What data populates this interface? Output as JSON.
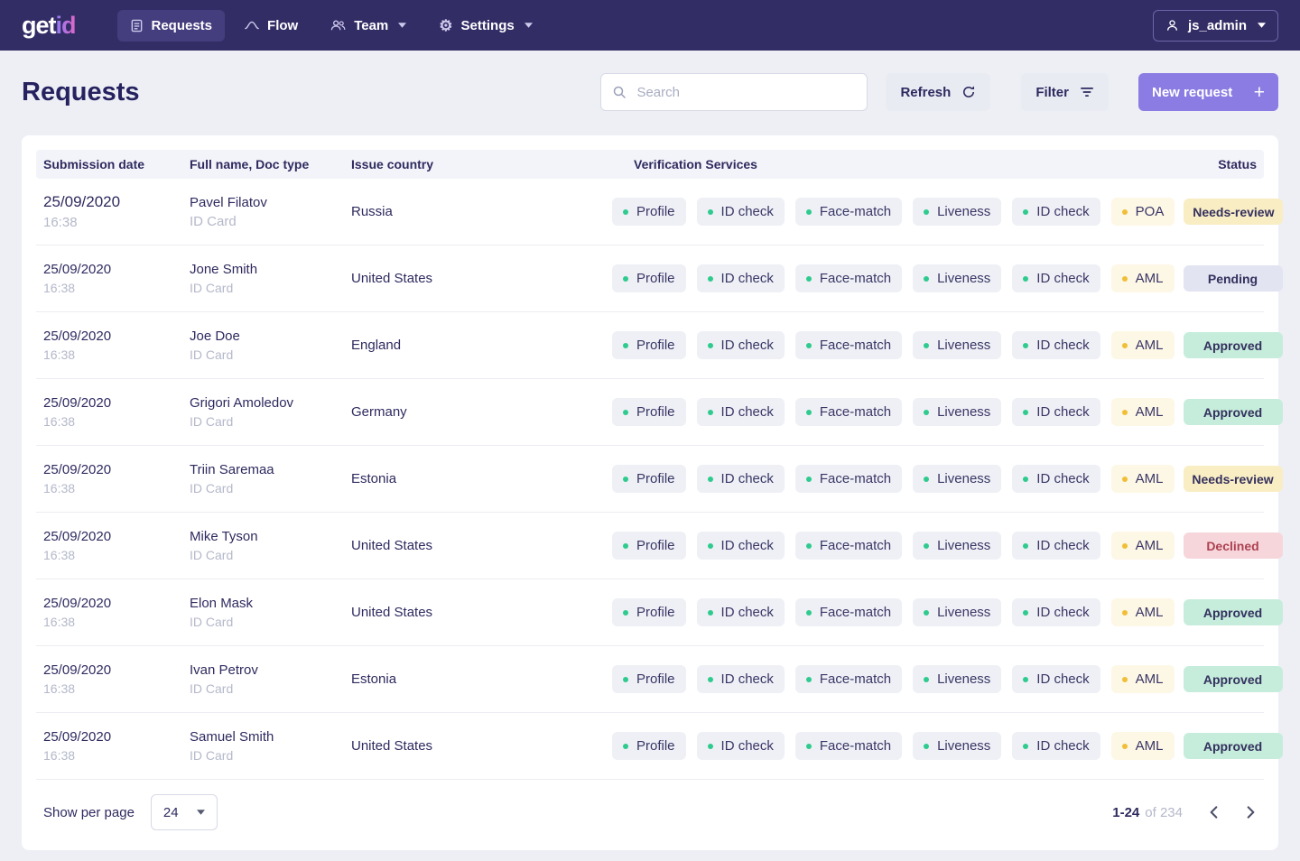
{
  "brand": {
    "get": "get",
    "id": "id"
  },
  "nav": {
    "items": [
      {
        "label": "Requests",
        "icon": "requests-icon",
        "active": true
      },
      {
        "label": "Flow",
        "icon": "flow-icon",
        "active": false
      },
      {
        "label": "Team",
        "icon": "team-icon",
        "active": false,
        "has_dropdown": true
      },
      {
        "label": "Settings",
        "icon": "settings-icon",
        "active": false,
        "has_dropdown": true
      }
    ],
    "user_label": "js_admin"
  },
  "page": {
    "title": "Requests"
  },
  "toolbar": {
    "search_placeholder": "Search",
    "refresh_label": "Refresh",
    "filter_label": "Filter",
    "new_request_label": "New request"
  },
  "table": {
    "columns": [
      "Submission date",
      "Full name, Doc type",
      "Issue country",
      "Verification Services",
      "Status"
    ],
    "rows": [
      {
        "date": "25/09/2020",
        "time": "16:38",
        "name": "Pavel Filatov",
        "doc_type": "ID Card",
        "country": "Russia",
        "services": [
          {
            "label": "Profile",
            "type": "green"
          },
          {
            "label": "ID check",
            "type": "green"
          },
          {
            "label": "Face-match",
            "type": "green"
          },
          {
            "label": "Liveness",
            "type": "green"
          },
          {
            "label": "ID check",
            "type": "green"
          },
          {
            "label": "POA",
            "type": "yellow"
          }
        ],
        "status": "Needs-review",
        "status_class": "needs-review",
        "emphasized": true
      },
      {
        "date": "25/09/2020",
        "time": "16:38",
        "name": "Jone Smith",
        "doc_type": "ID Card",
        "country": "United States",
        "services": [
          {
            "label": "Profile",
            "type": "green"
          },
          {
            "label": "ID check",
            "type": "green"
          },
          {
            "label": "Face-match",
            "type": "green"
          },
          {
            "label": "Liveness",
            "type": "green"
          },
          {
            "label": "ID check",
            "type": "green"
          },
          {
            "label": "AML",
            "type": "yellow"
          }
        ],
        "status": "Pending",
        "status_class": "pending",
        "emphasized": false
      },
      {
        "date": "25/09/2020",
        "time": "16:38",
        "name": "Joe Doe",
        "doc_type": "ID Card",
        "country": "England",
        "services": [
          {
            "label": "Profile",
            "type": "green"
          },
          {
            "label": "ID check",
            "type": "green"
          },
          {
            "label": "Face-match",
            "type": "green"
          },
          {
            "label": "Liveness",
            "type": "green"
          },
          {
            "label": "ID check",
            "type": "green"
          },
          {
            "label": "AML",
            "type": "yellow"
          }
        ],
        "status": "Approved",
        "status_class": "approved",
        "emphasized": false
      },
      {
        "date": "25/09/2020",
        "time": "16:38",
        "name": "Grigori Amoledov",
        "doc_type": "ID Card",
        "country": "Germany",
        "services": [
          {
            "label": "Profile",
            "type": "green"
          },
          {
            "label": "ID check",
            "type": "green"
          },
          {
            "label": "Face-match",
            "type": "green"
          },
          {
            "label": "Liveness",
            "type": "green"
          },
          {
            "label": "ID check",
            "type": "green"
          },
          {
            "label": "AML",
            "type": "yellow"
          }
        ],
        "status": "Approved",
        "status_class": "approved",
        "emphasized": false
      },
      {
        "date": "25/09/2020",
        "time": "16:38",
        "name": "Triin Saremaa",
        "doc_type": "ID Card",
        "country": "Estonia",
        "services": [
          {
            "label": "Profile",
            "type": "green"
          },
          {
            "label": "ID check",
            "type": "green"
          },
          {
            "label": "Face-match",
            "type": "green"
          },
          {
            "label": "Liveness",
            "type": "green"
          },
          {
            "label": "ID check",
            "type": "green"
          },
          {
            "label": "AML",
            "type": "yellow"
          }
        ],
        "status": "Needs-review",
        "status_class": "needs-review",
        "emphasized": false
      },
      {
        "date": "25/09/2020",
        "time": "16:38",
        "name": "Mike Tyson",
        "doc_type": "ID Card",
        "country": "United States",
        "services": [
          {
            "label": "Profile",
            "type": "green"
          },
          {
            "label": "ID check",
            "type": "green"
          },
          {
            "label": "Face-match",
            "type": "green"
          },
          {
            "label": "Liveness",
            "type": "green"
          },
          {
            "label": "ID check",
            "type": "green"
          },
          {
            "label": "AML",
            "type": "yellow"
          }
        ],
        "status": "Declined",
        "status_class": "declined",
        "emphasized": false
      },
      {
        "date": "25/09/2020",
        "time": "16:38",
        "name": "Elon Mask",
        "doc_type": "ID Card",
        "country": "United States",
        "services": [
          {
            "label": "Profile",
            "type": "green"
          },
          {
            "label": "ID check",
            "type": "green"
          },
          {
            "label": "Face-match",
            "type": "green"
          },
          {
            "label": "Liveness",
            "type": "green"
          },
          {
            "label": "ID check",
            "type": "green"
          },
          {
            "label": "AML",
            "type": "yellow"
          }
        ],
        "status": "Approved",
        "status_class": "approved",
        "emphasized": false
      },
      {
        "date": "25/09/2020",
        "time": "16:38",
        "name": "Ivan Petrov",
        "doc_type": "ID Card",
        "country": "Estonia",
        "services": [
          {
            "label": "Profile",
            "type": "green"
          },
          {
            "label": "ID check",
            "type": "green"
          },
          {
            "label": "Face-match",
            "type": "green"
          },
          {
            "label": "Liveness",
            "type": "green"
          },
          {
            "label": "ID check",
            "type": "green"
          },
          {
            "label": "AML",
            "type": "yellow"
          }
        ],
        "status": "Approved",
        "status_class": "approved",
        "emphasized": false
      },
      {
        "date": "25/09/2020",
        "time": "16:38",
        "name": "Samuel Smith",
        "doc_type": "ID Card",
        "country": "United States",
        "services": [
          {
            "label": "Profile",
            "type": "green"
          },
          {
            "label": "ID check",
            "type": "green"
          },
          {
            "label": "Face-match",
            "type": "green"
          },
          {
            "label": "Liveness",
            "type": "green"
          },
          {
            "label": "ID check",
            "type": "green"
          },
          {
            "label": "AML",
            "type": "yellow"
          }
        ],
        "status": "Approved",
        "status_class": "approved",
        "emphasized": false
      }
    ]
  },
  "pagination": {
    "show_per_page_label": "Show per page",
    "per_page_value": "24",
    "range_label": "1-24",
    "total_label": "of 234"
  },
  "colors": {
    "navbar_bg": "#332d66",
    "accent_purple": "#8a7ce2",
    "green_dot": "#2fcb8e",
    "yellow_dot": "#f0bf36",
    "needs_review_bg": "#f9edc4",
    "pending_bg": "#e2e4f1",
    "approved_bg": "#c6eddb",
    "declined_bg": "#f7d6db"
  }
}
